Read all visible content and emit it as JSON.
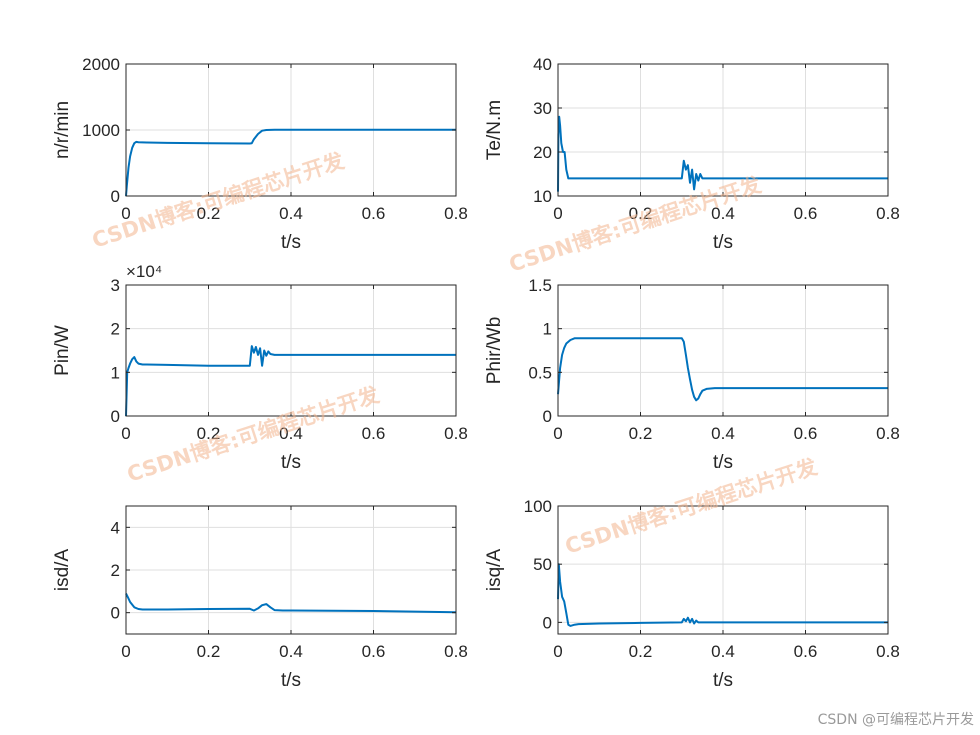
{
  "credit": "CSDN @可编程芯片开发",
  "watermark": "CSDN博客:可编程芯片开发",
  "colors": {
    "line": "#0072BD",
    "grid": "#dfdfdf",
    "axis": "#262626",
    "watermark": "#f2b48e"
  },
  "chart_data": [
    {
      "type": "line",
      "xlabel": "t/s",
      "ylabel": "n/r/min",
      "xlim": [
        0,
        0.8
      ],
      "ylim": [
        0,
        2000
      ],
      "xticks": [
        0,
        0.2,
        0.4,
        0.6,
        0.8
      ],
      "xtick_labels": [
        "0",
        "0.2",
        "0.4",
        "0.6",
        "0.8"
      ],
      "yticks": [
        0,
        1000,
        2000
      ],
      "ytick_labels": [
        "0",
        "1000",
        "2000"
      ],
      "exponent_label": "",
      "grid": true,
      "series": [
        {
          "x": [
            0,
            0.002,
            0.006,
            0.01,
            0.015,
            0.02,
            0.025,
            0.03,
            0.05,
            0.1,
            0.2,
            0.3,
            0.305,
            0.31,
            0.32,
            0.33,
            0.34,
            0.36,
            0.4,
            0.6,
            0.8
          ],
          "y": [
            0,
            150,
            430,
            600,
            730,
            800,
            820,
            815,
            810,
            805,
            800,
            795,
            800,
            860,
            940,
            990,
            1000,
            1005,
            1005,
            1005,
            1005
          ]
        }
      ]
    },
    {
      "type": "line",
      "xlabel": "t/s",
      "ylabel": "Te/N.m",
      "xlim": [
        0,
        0.8
      ],
      "ylim": [
        10,
        40
      ],
      "xticks": [
        0,
        0.2,
        0.4,
        0.6,
        0.8
      ],
      "xtick_labels": [
        "0",
        "0.2",
        "0.4",
        "0.6",
        "0.8"
      ],
      "yticks": [
        10,
        20,
        30,
        40
      ],
      "ytick_labels": [
        "10",
        "20",
        "30",
        "40"
      ],
      "exponent_label": "",
      "grid": true,
      "series": [
        {
          "x": [
            0,
            0.001,
            0.003,
            0.005,
            0.008,
            0.012,
            0.016,
            0.02,
            0.025,
            0.03,
            0.1,
            0.2,
            0.3,
            0.305,
            0.31,
            0.315,
            0.32,
            0.325,
            0.33,
            0.335,
            0.34,
            0.345,
            0.35,
            0.36,
            0.4,
            0.6,
            0.8
          ],
          "y": [
            11,
            24,
            28,
            26,
            22,
            20,
            20,
            16,
            14,
            14,
            14,
            14,
            14,
            18,
            16,
            17,
            13,
            16,
            11.5,
            15,
            13.5,
            15,
            14,
            14,
            14,
            14,
            14
          ]
        }
      ]
    },
    {
      "type": "line",
      "xlabel": "t/s",
      "ylabel": "Pin/W",
      "xlim": [
        0,
        0.8
      ],
      "ylim": [
        0,
        30000
      ],
      "xticks": [
        0,
        0.2,
        0.4,
        0.6,
        0.8
      ],
      "xtick_labels": [
        "0",
        "0.2",
        "0.4",
        "0.6",
        "0.8"
      ],
      "yticks": [
        0,
        10000,
        20000,
        30000
      ],
      "ytick_labels": [
        "0",
        "1",
        "2",
        "3"
      ],
      "exponent_label": "×10⁴",
      "grid": true,
      "series": [
        {
          "x": [
            0,
            0.003,
            0.006,
            0.01,
            0.015,
            0.02,
            0.025,
            0.03,
            0.04,
            0.05,
            0.1,
            0.2,
            0.3,
            0.305,
            0.31,
            0.315,
            0.32,
            0.325,
            0.33,
            0.335,
            0.34,
            0.345,
            0.35,
            0.36,
            0.4,
            0.6,
            0.8
          ],
          "y": [
            0,
            10000,
            11000,
            12000,
            13000,
            13500,
            12500,
            12000,
            11800,
            11800,
            11700,
            11500,
            11500,
            16000,
            14500,
            15800,
            14000,
            15500,
            11500,
            15000,
            13800,
            14800,
            14200,
            14000,
            14000,
            14000,
            14000
          ]
        }
      ]
    },
    {
      "type": "line",
      "xlabel": "t/s",
      "ylabel": "Phir/Wb",
      "xlim": [
        0,
        0.8
      ],
      "ylim": [
        0,
        1.5
      ],
      "xticks": [
        0,
        0.2,
        0.4,
        0.6,
        0.8
      ],
      "xtick_labels": [
        "0",
        "0.2",
        "0.4",
        "0.6",
        "0.8"
      ],
      "yticks": [
        0,
        0.5,
        1,
        1.5
      ],
      "ytick_labels": [
        "0",
        "0.5",
        "1",
        "1.5"
      ],
      "exponent_label": "",
      "grid": true,
      "series": [
        {
          "x": [
            0,
            0.005,
            0.01,
            0.015,
            0.02,
            0.03,
            0.04,
            0.05,
            0.1,
            0.2,
            0.3,
            0.305,
            0.31,
            0.315,
            0.32,
            0.325,
            0.33,
            0.335,
            0.34,
            0.345,
            0.35,
            0.36,
            0.38,
            0.4,
            0.6,
            0.8
          ],
          "y": [
            0.25,
            0.55,
            0.7,
            0.78,
            0.83,
            0.87,
            0.89,
            0.89,
            0.89,
            0.89,
            0.89,
            0.85,
            0.7,
            0.55,
            0.42,
            0.3,
            0.22,
            0.18,
            0.2,
            0.25,
            0.29,
            0.31,
            0.32,
            0.32,
            0.32,
            0.32
          ]
        }
      ]
    },
    {
      "type": "line",
      "xlabel": "t/s",
      "ylabel": "isd/A",
      "xlim": [
        0,
        0.8
      ],
      "ylim": [
        -1,
        5
      ],
      "xticks": [
        0,
        0.2,
        0.4,
        0.6,
        0.8
      ],
      "xtick_labels": [
        "0",
        "0.2",
        "0.4",
        "0.6",
        "0.8"
      ],
      "yticks": [
        0,
        2,
        4
      ],
      "ytick_labels": [
        "0",
        "2",
        "4"
      ],
      "exponent_label": "",
      "grid": true,
      "series": [
        {
          "x": [
            0,
            0.005,
            0.01,
            0.02,
            0.03,
            0.04,
            0.05,
            0.1,
            0.2,
            0.3,
            0.31,
            0.32,
            0.33,
            0.34,
            0.35,
            0.36,
            0.38,
            0.4,
            0.6,
            0.8
          ],
          "y": [
            0.9,
            0.7,
            0.5,
            0.25,
            0.17,
            0.15,
            0.15,
            0.15,
            0.17,
            0.18,
            0.1,
            0.2,
            0.35,
            0.4,
            0.25,
            0.12,
            0.1,
            0.1,
            0.08,
            0.02
          ]
        }
      ]
    },
    {
      "type": "line",
      "xlabel": "t/s",
      "ylabel": "isq/A",
      "xlim": [
        0,
        0.8
      ],
      "ylim": [
        -10,
        100
      ],
      "xticks": [
        0,
        0.2,
        0.4,
        0.6,
        0.8
      ],
      "xtick_labels": [
        "0",
        "0.2",
        "0.4",
        "0.6",
        "0.8"
      ],
      "yticks": [
        0,
        50,
        100
      ],
      "ytick_labels": [
        "0",
        "50",
        "100"
      ],
      "exponent_label": "",
      "grid": true,
      "series": [
        {
          "x": [
            0,
            0.002,
            0.005,
            0.01,
            0.015,
            0.02,
            0.025,
            0.03,
            0.04,
            0.05,
            0.1,
            0.2,
            0.3,
            0.305,
            0.31,
            0.315,
            0.32,
            0.325,
            0.33,
            0.335,
            0.34,
            0.35,
            0.4,
            0.6,
            0.8
          ],
          "y": [
            20,
            50,
            35,
            22,
            18,
            8,
            -2,
            -3,
            -2,
            -1.5,
            -1,
            -0.5,
            0,
            3,
            1,
            4,
            0,
            3,
            -1,
            1.5,
            0,
            0,
            0,
            0,
            0
          ]
        }
      ]
    }
  ]
}
